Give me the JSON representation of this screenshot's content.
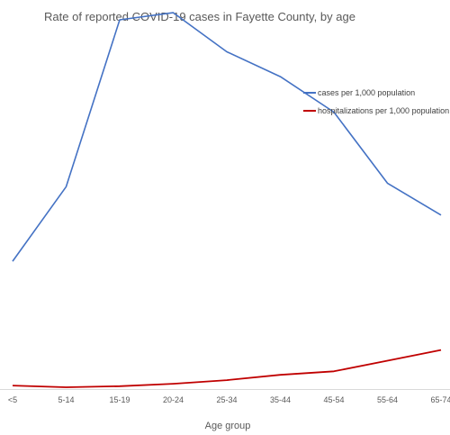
{
  "chart_data": {
    "type": "line",
    "title": "Rate of reported COVID-19 cases in Fayette County, by age",
    "xlabel": "Age group",
    "ylabel": "",
    "categories": [
      "<5",
      "5-14",
      "15-19",
      "20-24",
      "25-34",
      "35-44",
      "45-54",
      "55-64",
      "65-74"
    ],
    "ylim": [
      0,
      100
    ],
    "grid": false,
    "legend_position": "top-right",
    "series": [
      {
        "name": "cases per 1,000 population",
        "color": "#4472c4",
        "values": [
          36,
          57,
          104,
          106,
          95,
          88,
          78,
          58,
          49
        ]
      },
      {
        "name": "hospitalizations per 1,000 population",
        "color": "#c00000",
        "values": [
          1,
          0.5,
          0.8,
          1.5,
          2.5,
          4,
          5,
          8,
          11
        ]
      }
    ]
  }
}
